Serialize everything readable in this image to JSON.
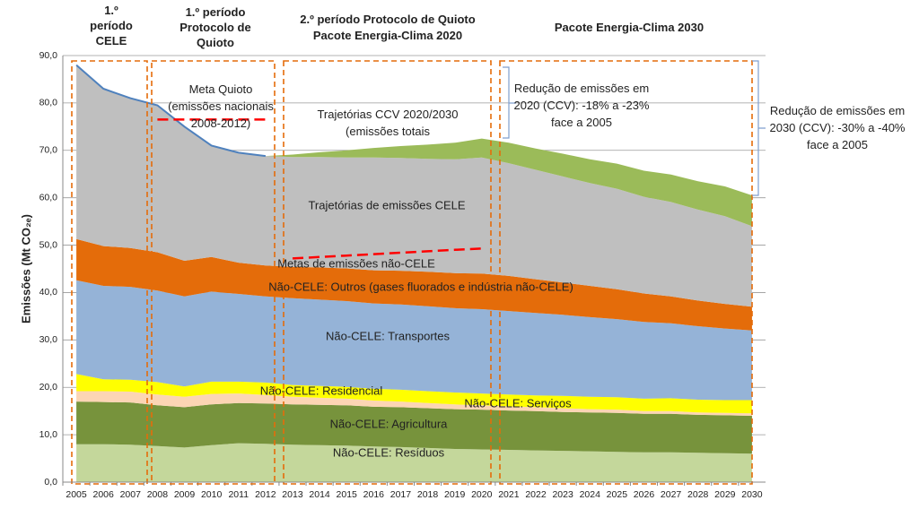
{
  "chart_data": {
    "type": "stacked_area",
    "headers": [
      [
        "1.º",
        "período",
        "CELE"
      ],
      [
        "1.º período",
        "Protocolo de",
        "Quioto"
      ],
      [
        "2.º período Protocolo de Quioto",
        "Pacote Energia-Clima 2020"
      ],
      [
        "Pacote Energia-Clima 2030"
      ]
    ],
    "y_label": "Emissões (Mt CO₂ₑ)",
    "categories": [
      "2005",
      "2006",
      "2007",
      "2008",
      "2009",
      "2010",
      "2011",
      "2012",
      "2013",
      "2014",
      "2015",
      "2016",
      "2017",
      "2018",
      "2019",
      "2020",
      "2021",
      "2022",
      "2023",
      "2024",
      "2025",
      "2026",
      "2027",
      "2028",
      "2029",
      "2030"
    ],
    "ylim": [
      0,
      90
    ],
    "yticks": [
      {
        "value": 0,
        "label": "0,0"
      },
      {
        "value": 10,
        "label": "10,0"
      },
      {
        "value": 20,
        "label": "20,0"
      },
      {
        "value": 30,
        "label": "30,0"
      },
      {
        "value": 40,
        "label": "40,0"
      },
      {
        "value": 50,
        "label": "50,0"
      },
      {
        "value": 60,
        "label": "60,0"
      },
      {
        "value": 70,
        "label": "70,0"
      },
      {
        "value": 80,
        "label": "80,0"
      },
      {
        "value": 90,
        "label": "90,0"
      }
    ],
    "grid": true,
    "series": [
      {
        "name": "Não-CELE: Resíduos",
        "color": "#c4d79b",
        "values": [
          8.0,
          8.0,
          7.9,
          7.6,
          7.3,
          7.8,
          8.2,
          8.1,
          7.9,
          7.8,
          7.7,
          7.5,
          7.4,
          7.2,
          7.0,
          6.9,
          6.8,
          6.7,
          6.6,
          6.5,
          6.4,
          6.3,
          6.3,
          6.2,
          6.1,
          6.0
        ]
      },
      {
        "name": "Não-CELE: Agricultura",
        "color": "#77933c",
        "values": [
          9.0,
          8.9,
          8.9,
          8.6,
          8.5,
          8.6,
          8.5,
          8.5,
          8.5,
          8.5,
          8.5,
          8.4,
          8.4,
          8.4,
          8.4,
          8.4,
          8.3,
          8.3,
          8.2,
          8.2,
          8.2,
          8.1,
          8.1,
          8.0,
          8.0,
          8.0
        ]
      },
      {
        "name": "Não-CELE: Serviços",
        "color": "#fcd5b4",
        "values": [
          2.2,
          2.3,
          2.3,
          2.3,
          2.2,
          2.2,
          2.0,
          1.8,
          1.6,
          1.5,
          1.4,
          1.3,
          1.2,
          1.1,
          1.0,
          0.9,
          0.9,
          0.8,
          0.8,
          0.7,
          0.7,
          0.6,
          0.6,
          0.5,
          0.5,
          0.5
        ]
      },
      {
        "name": "Não-CELE: Residencial",
        "color": "#ffff00",
        "values": [
          3.6,
          2.5,
          2.5,
          2.6,
          2.2,
          2.6,
          2.5,
          2.6,
          2.5,
          2.5,
          2.5,
          2.5,
          2.5,
          2.5,
          2.5,
          2.5,
          2.5,
          2.5,
          2.6,
          2.6,
          2.6,
          2.6,
          2.7,
          2.7,
          2.7,
          2.8
        ]
      },
      {
        "name": "Não-CELE: Transportes",
        "color": "#95b3d7",
        "values": [
          19.8,
          19.7,
          19.6,
          19.3,
          19.0,
          19.0,
          18.5,
          18.2,
          18.3,
          18.2,
          18.1,
          18.0,
          18.0,
          17.9,
          17.8,
          17.8,
          17.6,
          17.4,
          17.1,
          16.8,
          16.5,
          16.2,
          15.8,
          15.5,
          15.1,
          14.7
        ]
      },
      {
        "name": "Não-CELE: Outros (gases fluorados e indústria não-CELE)",
        "color": "#e46c0a",
        "values": [
          8.7,
          8.4,
          8.2,
          8.1,
          7.5,
          7.3,
          6.6,
          6.5,
          6.6,
          6.8,
          6.9,
          7.0,
          7.1,
          7.3,
          7.4,
          7.5,
          7.4,
          7.1,
          6.8,
          6.6,
          6.3,
          6.0,
          5.7,
          5.4,
          5.2,
          5.0
        ]
      },
      {
        "name": "Trajetórias de emissões CELE",
        "color": "#bfbfbf",
        "values": [
          36.7,
          33.2,
          31.6,
          31.0,
          28.3,
          23.5,
          23.2,
          23.1,
          23.2,
          23.3,
          23.4,
          23.8,
          23.8,
          23.8,
          24.0,
          24.5,
          23.8,
          23.1,
          22.4,
          21.7,
          21.2,
          20.4,
          19.9,
          19.2,
          18.5,
          17.0
        ]
      },
      {
        "name": [
          "Trajetórias CCV 2020/2030",
          "(emissões totais"
        ],
        "color": "#9bbb59",
        "values": [
          null,
          null,
          null,
          null,
          null,
          null,
          null,
          0,
          0.5,
          1.0,
          1.5,
          2.0,
          2.5,
          3.0,
          3.5,
          4.0,
          4.3,
          4.5,
          4.8,
          5.0,
          5.3,
          5.5,
          5.8,
          6.0,
          6.3,
          6.5
        ]
      }
    ],
    "lines": [
      {
        "color": "#4f81bd",
        "dashed": false,
        "values": [
          88,
          83,
          81,
          79.5,
          75,
          71,
          69.5,
          68.8,
          null,
          null,
          null,
          null,
          null,
          null,
          null,
          null,
          null,
          null,
          null,
          null,
          null,
          null,
          null,
          null,
          null,
          null
        ]
      },
      {
        "name": [
          "Meta Quioto",
          "(emissões nacionais",
          "2008-2012)"
        ],
        "color": "#ff0000",
        "dashed": true,
        "values": [
          null,
          null,
          null,
          76.5,
          76.5,
          76.5,
          76.5,
          76.5,
          null,
          null,
          null,
          null,
          null,
          null,
          null,
          null,
          null,
          null,
          null,
          null,
          null,
          null,
          null,
          null,
          null,
          null
        ]
      },
      {
        "name": "Metas de emissões não-CELE",
        "color": "#ff0000",
        "dashed": true,
        "values": [
          null,
          null,
          null,
          null,
          null,
          null,
          null,
          null,
          47.2,
          47.5,
          47.8,
          48.1,
          48.4,
          48.7,
          49.0,
          49.3,
          null,
          null,
          null,
          null,
          null,
          null,
          null,
          null,
          null,
          null
        ]
      }
    ],
    "annotations": [
      [
        "Redução de emissões em",
        "2020 (CCV): -18% a -23%",
        "face a 2005"
      ],
      [
        "Redução de emissões em",
        "2030 (CCV): -30% a -40%",
        "face a 2005"
      ]
    ]
  }
}
